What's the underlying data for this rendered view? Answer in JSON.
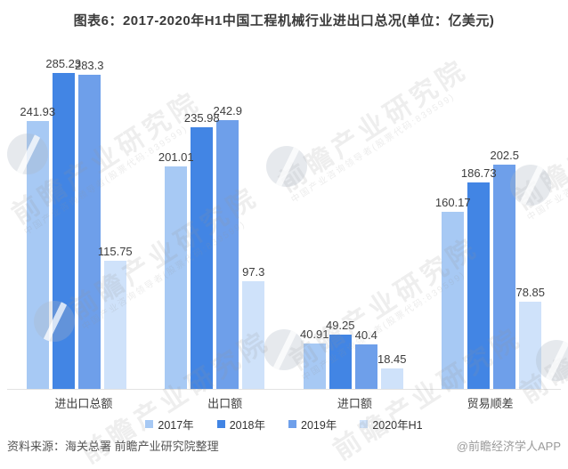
{
  "title": "图表6：2017-2020年H1中国工程机械行业进出口总况(单位：亿美元)",
  "chart_data": {
    "type": "bar",
    "title": "图表6：2017-2020年H1中国工程机械行业进出口总况",
    "unit": "亿美元",
    "categories": [
      "进出口总额",
      "出口额",
      "进口额",
      "贸易顺差"
    ],
    "series": [
      {
        "name": "2017年",
        "color": "#A7C9F4",
        "values": [
          241.93,
          201.01,
          40.91,
          160.17
        ]
      },
      {
        "name": "2018年",
        "color": "#4285E4",
        "values": [
          285.23,
          235.98,
          49.25,
          186.73
        ]
      },
      {
        "name": "2019年",
        "color": "#6E9FEA",
        "values": [
          283.3,
          242.9,
          40.4,
          202.5
        ]
      },
      {
        "name": "2020年H1",
        "color": "#CFE2FA",
        "values": [
          115.75,
          97.3,
          18.45,
          78.85
        ]
      }
    ],
    "ylim": [
      0,
      300
    ],
    "grid": false,
    "legend_position": "bottom",
    "value_labels": true
  },
  "footer": {
    "source": "资料来源：海关总署 前瞻产业研究院整理",
    "credit": "@前瞻经济学人APP"
  },
  "watermark": {
    "text": "前瞻产业研究院",
    "subtext": "中国产业咨询领导者(股票代码:839599)"
  }
}
